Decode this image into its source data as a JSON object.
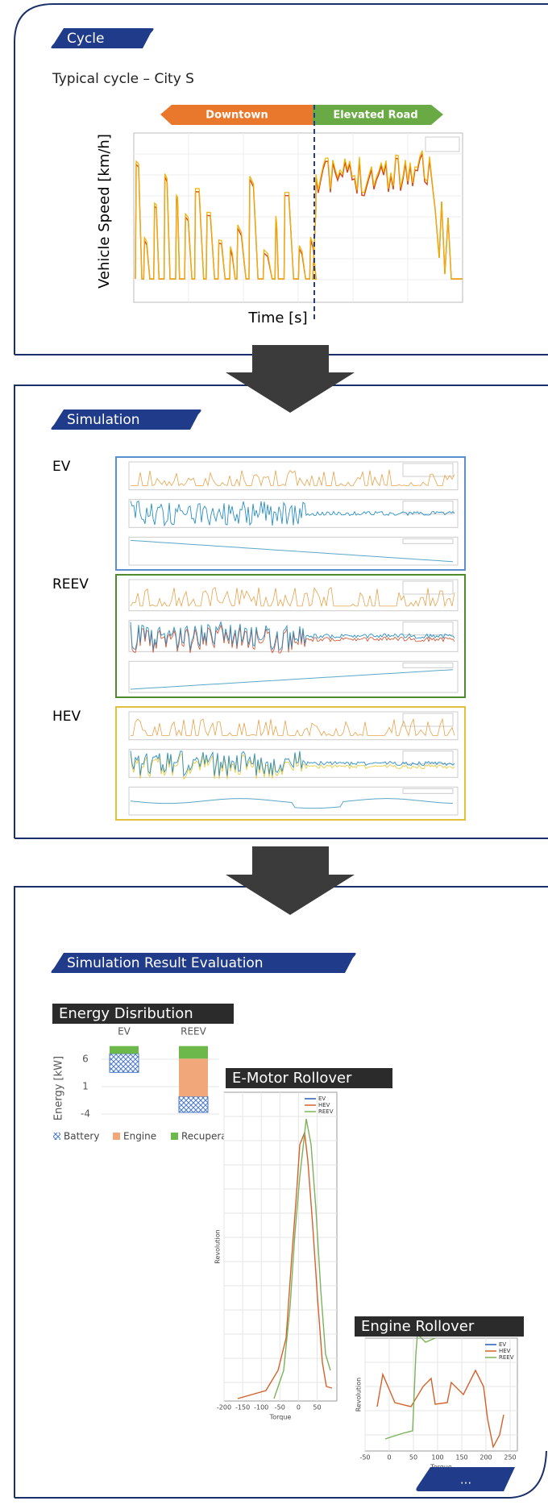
{
  "sections": [
    {
      "tag": "Cycle",
      "subtitle": "Typical cycle – City S",
      "chart": {
        "phases": [
          "Downtown",
          "Elevated Road"
        ],
        "y_label": "Vehicle Speed [km/h]",
        "x_label": "Time [s]"
      }
    },
    {
      "tag": "Simulation",
      "panels": [
        "EV",
        "REEV",
        "HEV"
      ]
    },
    {
      "tag": "Simulation Result Evaluation",
      "energy": {
        "type": "bar",
        "title": "Energy Disribution",
        "categories": [
          "EV",
          "REEV"
        ],
        "y_label": "Energy [kW]",
        "ylim": [
          -5,
          9
        ],
        "yticks": [
          6,
          1,
          -4
        ],
        "series": [
          {
            "name": "Battery",
            "color": "#4a78c8",
            "values": [
              [
                3.6,
                7.0
              ],
              [
                -3.7,
                -0.8
              ]
            ]
          },
          {
            "name": "Engine",
            "color": "#f2a77a",
            "values": [
              null,
              [
                -0.8,
                6.1
              ]
            ]
          },
          {
            "name": "Recuperat",
            "color": "#6cb84a",
            "values": [
              [
                7.0,
                8.4
              ],
              [
                6.1,
                8.4
              ]
            ]
          }
        ]
      },
      "emotor": {
        "title": "E-Motor Rollover",
        "xticks": [
          -200,
          -150,
          -100,
          -50,
          0,
          50
        ],
        "x_label": "Torque",
        "y_label": "Revolution",
        "legend": [
          "EV",
          "HEV",
          "REEV"
        ]
      },
      "engine": {
        "title": "Engine Rollover",
        "xticks": [
          -50,
          0,
          50,
          100,
          150,
          200,
          250
        ],
        "x_label": "Torque",
        "y_label": "Revolution",
        "legend": [
          "EV",
          "HEV",
          "REEV"
        ]
      },
      "more": "..."
    }
  ]
}
